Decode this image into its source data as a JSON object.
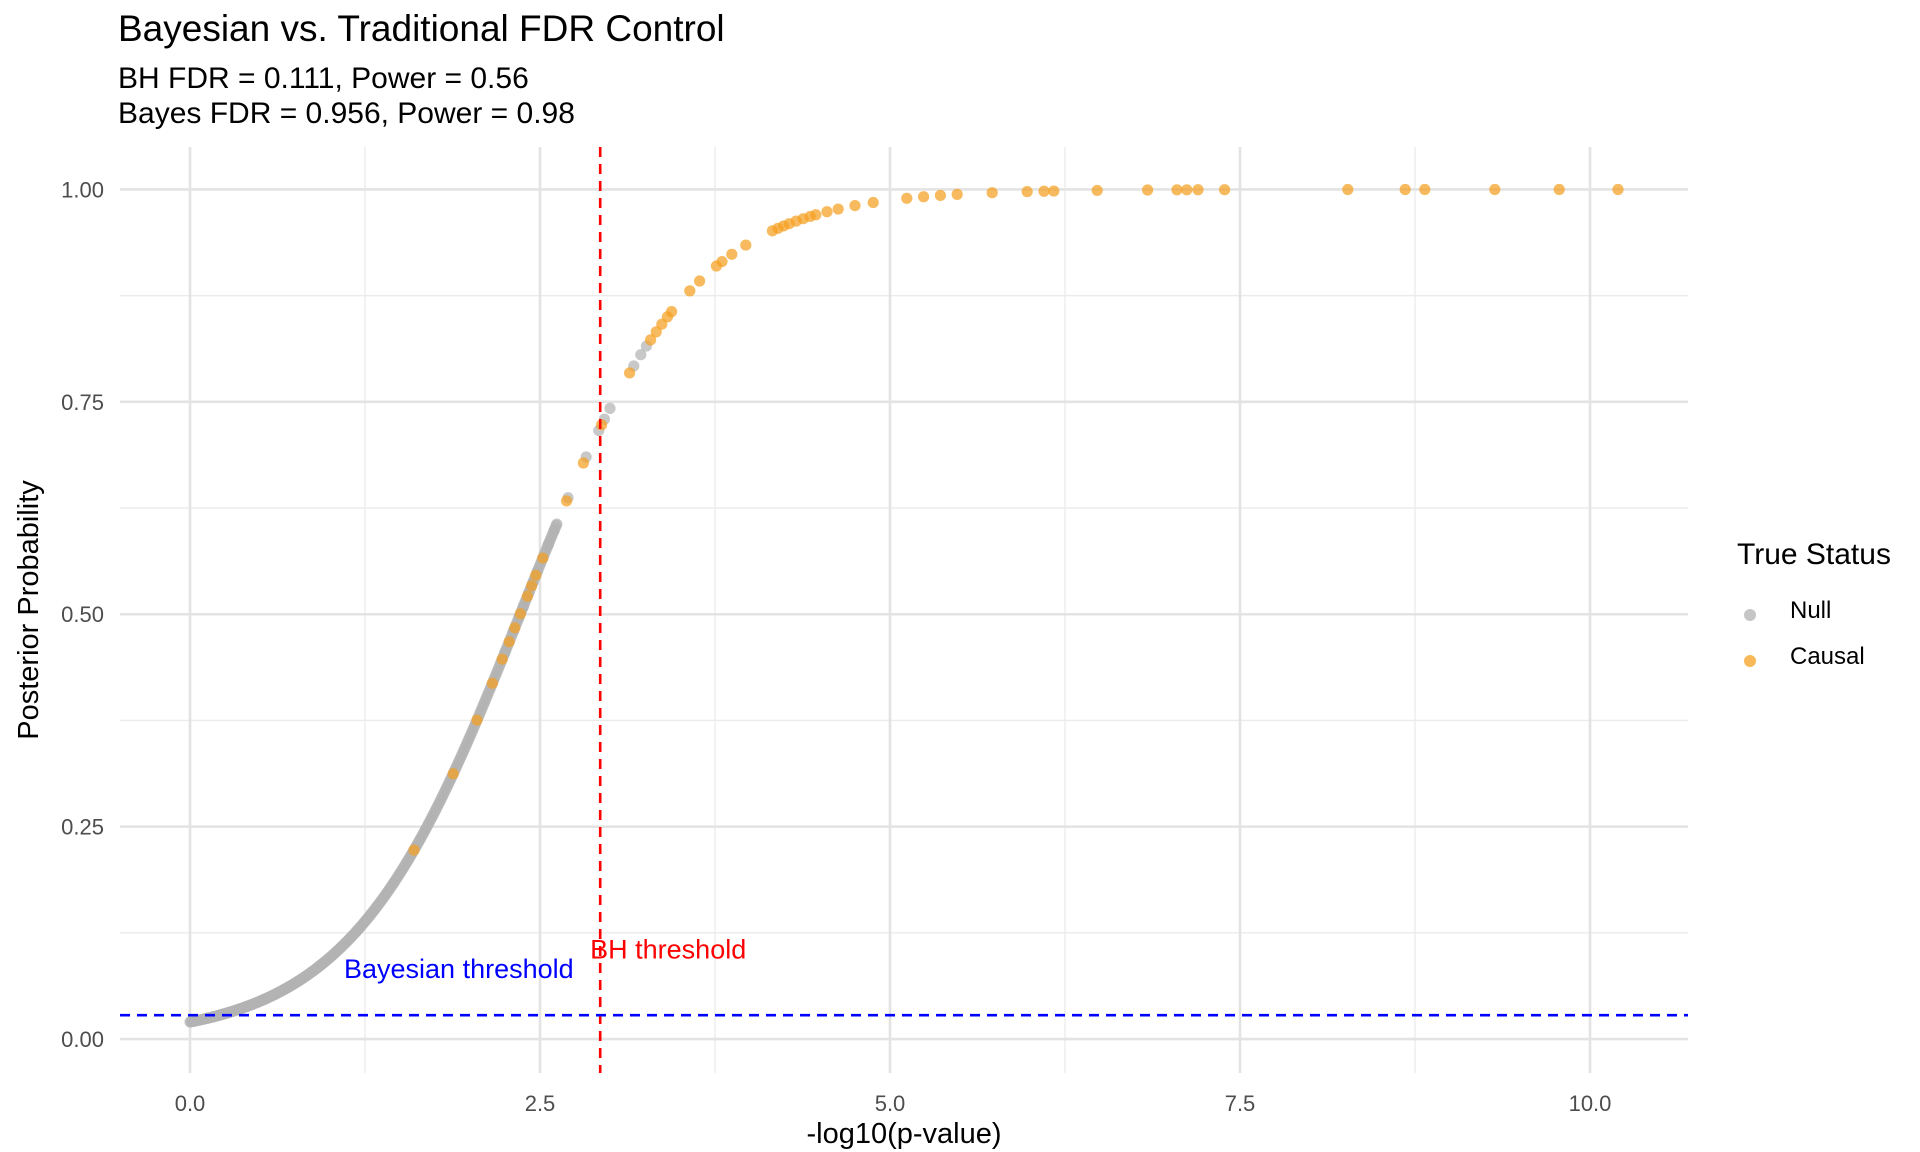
{
  "chart_data": {
    "type": "scatter",
    "title": "Bayesian vs. Traditional FDR Control",
    "subtitle_lines": [
      "BH FDR = 0.111, Power = 0.56",
      "Bayes FDR = 0.956, Power = 0.98"
    ],
    "xlabel": "-log10(p-value)",
    "ylabel": "Posterior Probability",
    "xlim": [
      -0.5,
      10.7
    ],
    "ylim": [
      -0.04,
      1.05
    ],
    "x_ticks": [
      0,
      2.5,
      5,
      7.5,
      10
    ],
    "x_tick_labels": [
      "0.0",
      "2.5",
      "5.0",
      "7.5",
      "10.0"
    ],
    "y_ticks": [
      0,
      0.25,
      0.5,
      0.75,
      1
    ],
    "y_tick_labels": [
      "0.00",
      "0.25",
      "0.50",
      "0.75",
      "1.00"
    ],
    "grid": true,
    "curve_model": {
      "prior": 0.02,
      "slope": 1.65
    },
    "null_x_sampled": {
      "from": 0.0,
      "to": 2.62,
      "step": 0.008
    },
    "series": [
      {
        "name": "Null",
        "color": "#b3b3b3",
        "x": [
          2.25,
          2.31,
          2.35,
          2.38,
          2.42,
          2.45,
          2.48,
          2.52,
          2.56,
          2.6,
          2.62,
          2.7,
          2.83,
          2.92,
          2.96,
          3.0,
          3.17,
          3.22,
          3.26
        ]
      },
      {
        "name": "Causal",
        "color": "#f5a020",
        "x": [
          1.6,
          1.88,
          2.05,
          2.16,
          2.23,
          2.28,
          2.32,
          2.36,
          2.41,
          2.44,
          2.47,
          2.52,
          2.69,
          2.81,
          2.94,
          3.14,
          3.29,
          3.33,
          3.37,
          3.41,
          3.44,
          3.57,
          3.64,
          3.76,
          3.8,
          3.87,
          3.97,
          4.16,
          4.2,
          4.24,
          4.28,
          4.33,
          4.38,
          4.43,
          4.47,
          4.55,
          4.63,
          4.75,
          4.88,
          5.12,
          5.24,
          5.36,
          5.48,
          5.73,
          5.98,
          6.1,
          6.17,
          6.48,
          6.84,
          7.05,
          7.12,
          7.2,
          7.39,
          8.27,
          8.68,
          8.82,
          9.32,
          9.78,
          10.2
        ]
      }
    ],
    "legend": {
      "title": "True Status",
      "position": "right",
      "entries": [
        "Null",
        "Causal"
      ]
    },
    "reference_lines": [
      {
        "orientation": "vertical",
        "value": 2.93,
        "color": "#ff0000",
        "label": "BH threshold"
      },
      {
        "orientation": "horizontal",
        "value": 0.028,
        "color": "#0000ff",
        "label": "Bayesian threshold"
      }
    ]
  }
}
